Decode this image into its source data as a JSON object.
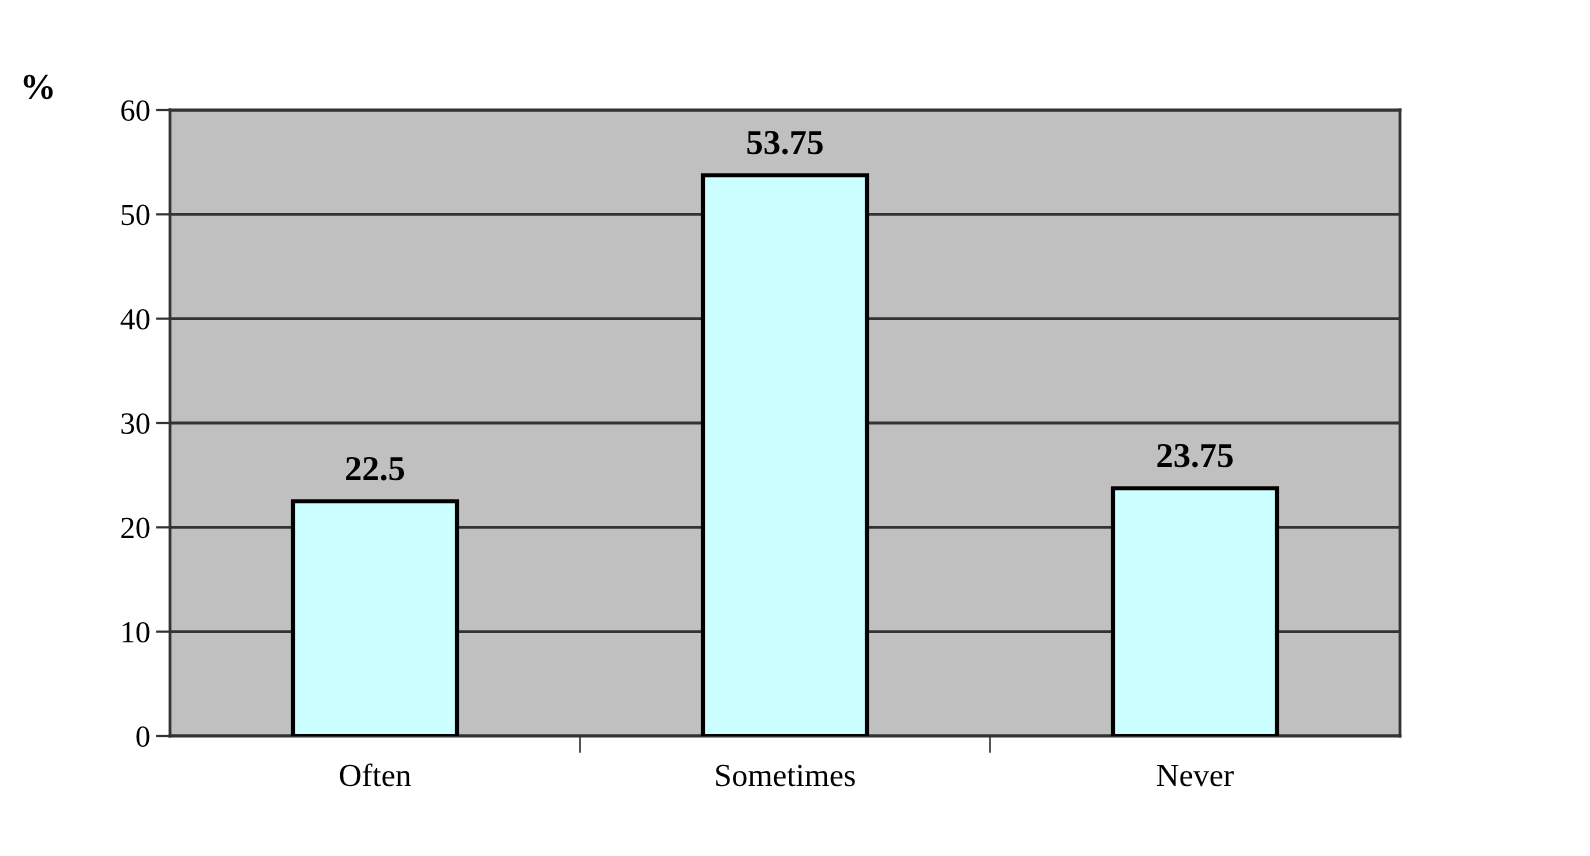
{
  "chart_data": {
    "type": "bar",
    "ylabel": "%",
    "categories": [
      "Often",
      "Sometimes",
      "Never"
    ],
    "values": [
      22.5,
      53.75,
      23.75
    ],
    "color": "#ccffff",
    "ylim": [
      0,
      60
    ],
    "yticks": [
      0,
      10,
      20,
      30,
      40,
      50,
      60
    ],
    "grid": "y",
    "data_labels": true
  }
}
